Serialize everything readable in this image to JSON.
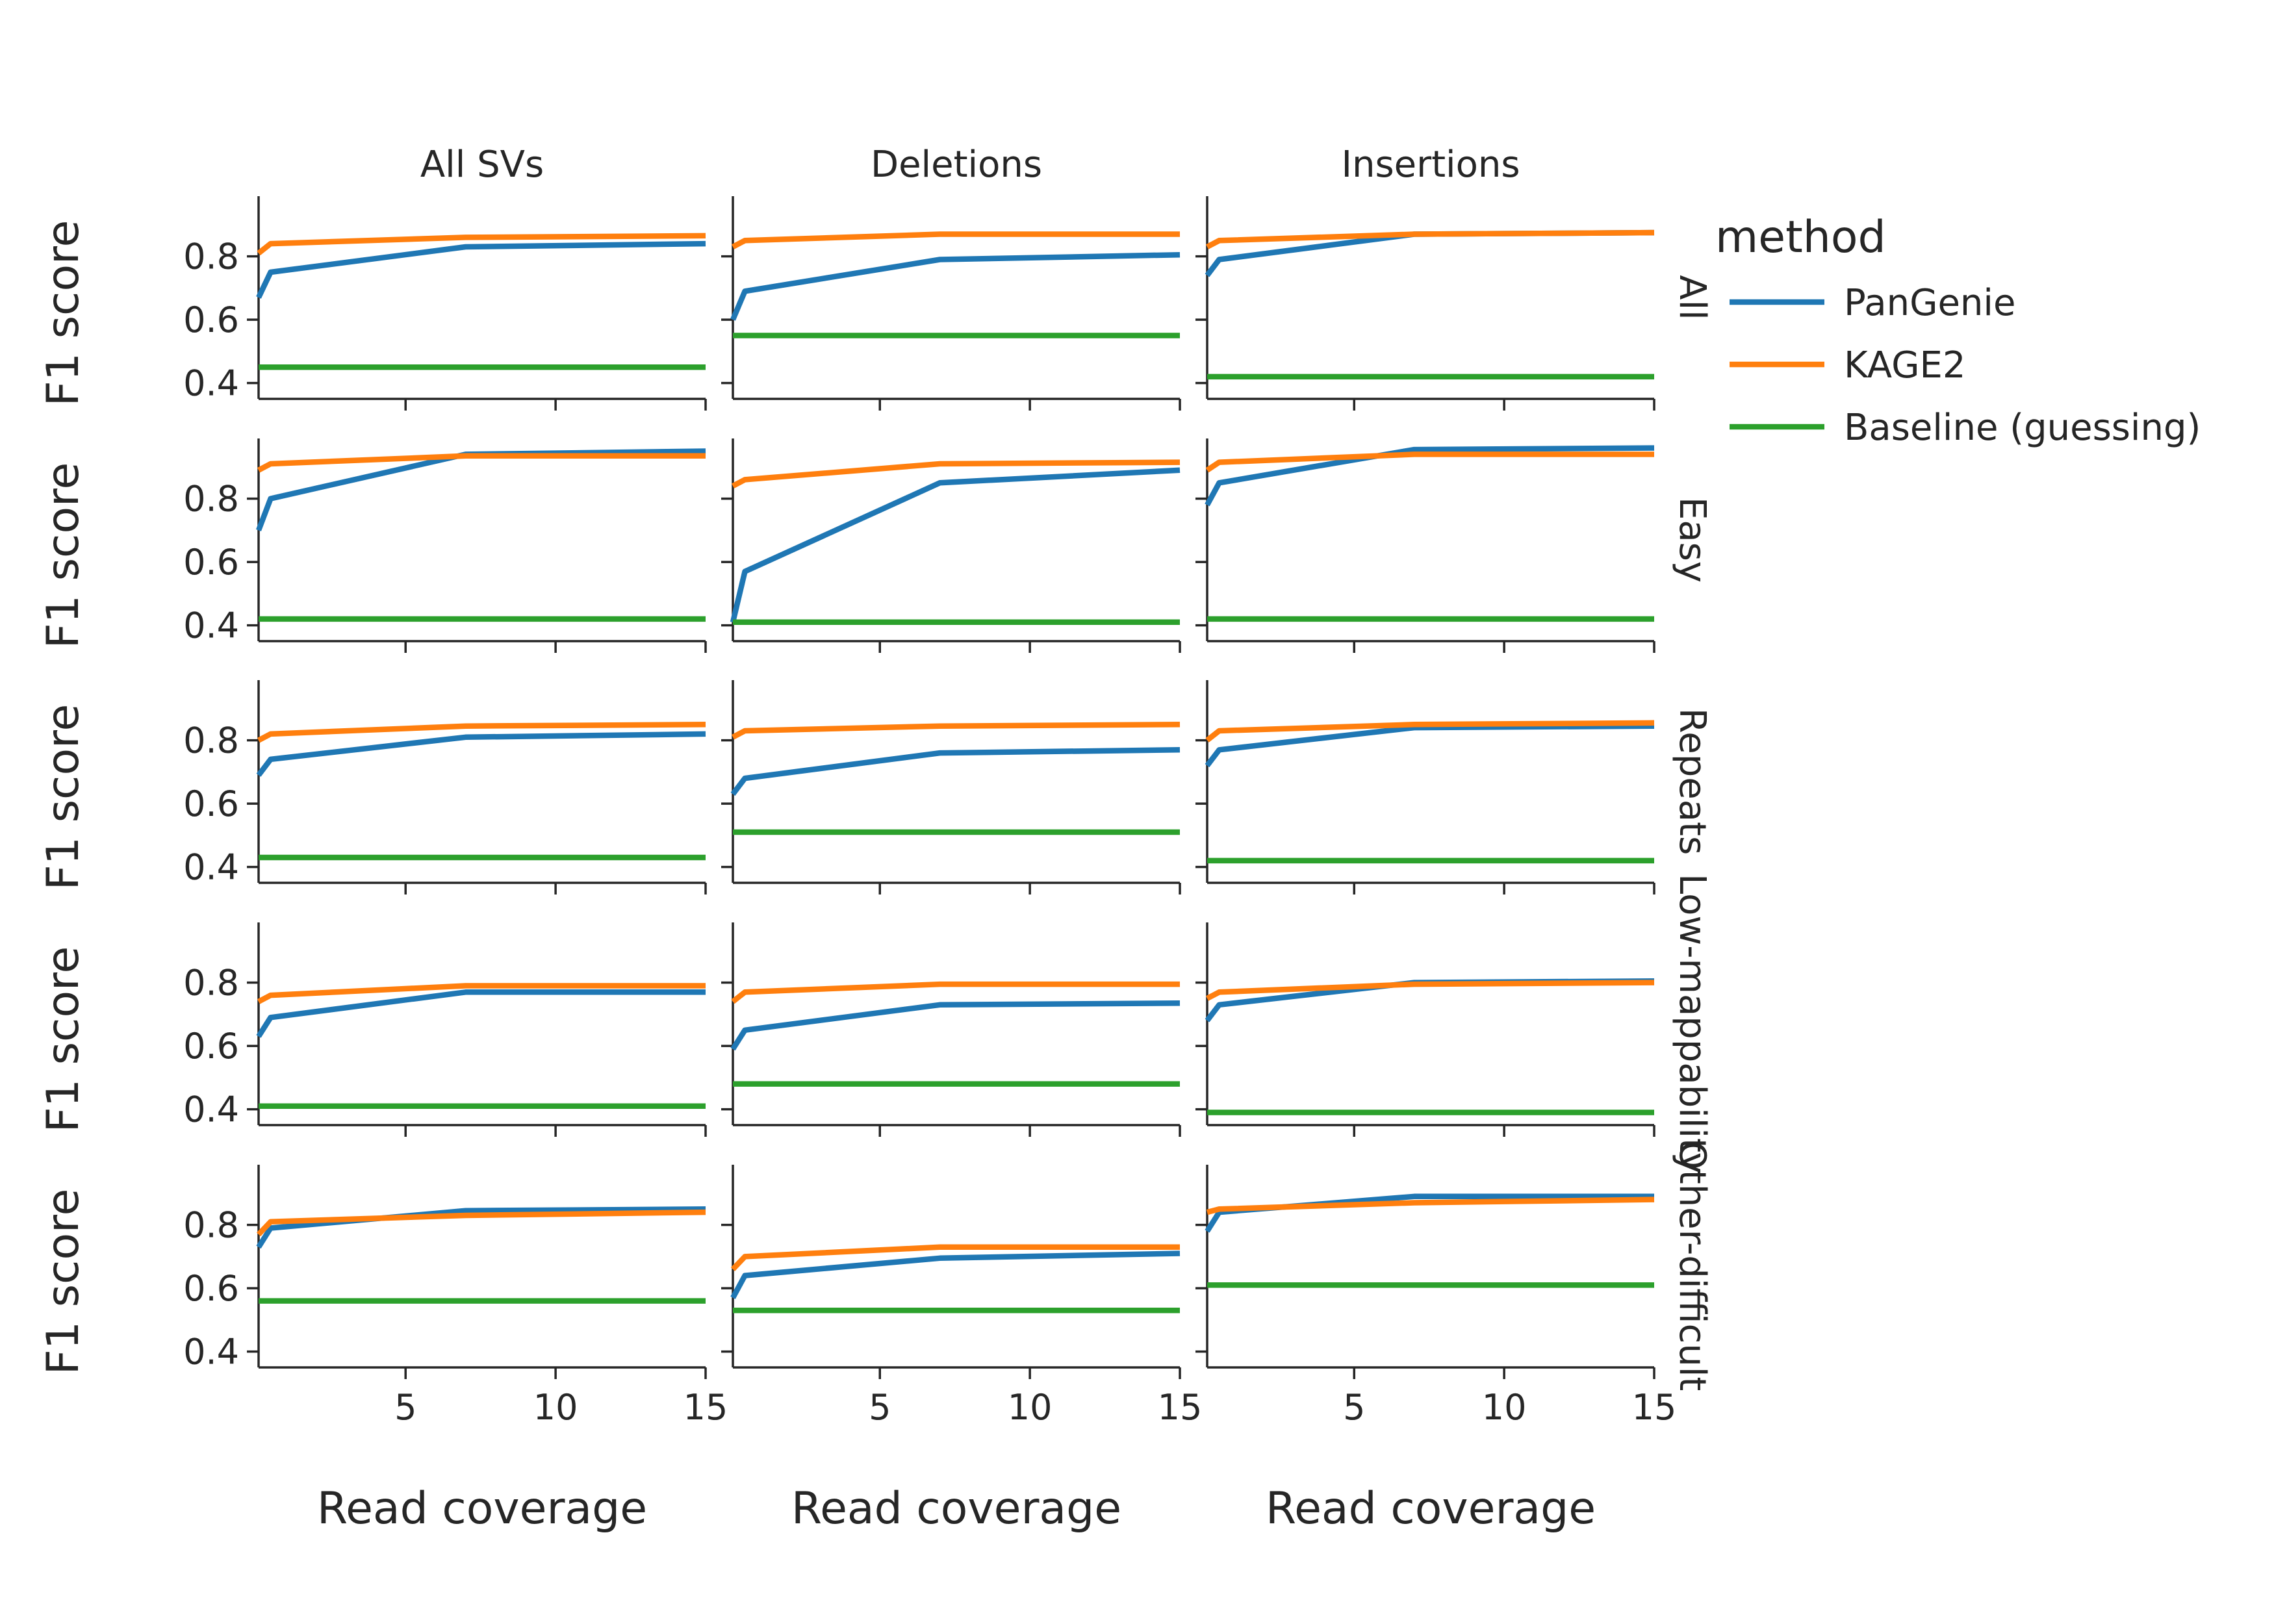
{
  "chart_data": {
    "type": "line",
    "layout": "facet grid (rows x columns)",
    "column_titles": [
      "All SVs",
      "Deletions",
      "Insertions"
    ],
    "row_titles": [
      "All",
      "Easy",
      "Repeats",
      "Low-mappability",
      "Other-difficult"
    ],
    "xlabel": "Read coverage",
    "ylabel": "F1 score",
    "x": [
      0.1,
      0.5,
      7,
      15
    ],
    "xlim": [
      0.1,
      15
    ],
    "ylim": [
      0.35,
      0.99
    ],
    "xticks": [
      5,
      10,
      15
    ],
    "yticks": [
      0.4,
      0.6,
      0.8
    ],
    "legend": {
      "title": "method",
      "position": "right"
    },
    "methods": [
      {
        "name": "PanGenie",
        "color": "#1f77b4"
      },
      {
        "name": "KAGE2",
        "color": "#ff7f0e"
      },
      {
        "name": "Baseline (guessing)",
        "color": "#2ca02c"
      }
    ],
    "panels": [
      [
        {
          "PanGenie": [
            0.67,
            0.75,
            0.83,
            0.84
          ],
          "KAGE2": [
            0.81,
            0.84,
            0.86,
            0.865
          ],
          "Baseline (guessing)": [
            0.45,
            0.45,
            0.45,
            0.45
          ]
        },
        {
          "PanGenie": [
            0.6,
            0.69,
            0.79,
            0.805
          ],
          "KAGE2": [
            0.83,
            0.85,
            0.87,
            0.87
          ],
          "Baseline (guessing)": [
            0.55,
            0.55,
            0.55,
            0.55
          ]
        },
        {
          "PanGenie": [
            0.74,
            0.79,
            0.87,
            0.875
          ],
          "KAGE2": [
            0.83,
            0.85,
            0.87,
            0.875
          ],
          "Baseline (guessing)": [
            0.42,
            0.42,
            0.42,
            0.42
          ]
        }
      ],
      [
        {
          "PanGenie": [
            0.7,
            0.8,
            0.94,
            0.95
          ],
          "KAGE2": [
            0.89,
            0.91,
            0.935,
            0.935
          ],
          "Baseline (guessing)": [
            0.42,
            0.42,
            0.42,
            0.42
          ]
        },
        {
          "PanGenie": [
            0.41,
            0.57,
            0.85,
            0.89
          ],
          "KAGE2": [
            0.84,
            0.86,
            0.91,
            0.915
          ],
          "Baseline (guessing)": [
            0.41,
            0.41,
            0.41,
            0.41
          ]
        },
        {
          "PanGenie": [
            0.78,
            0.85,
            0.955,
            0.96
          ],
          "KAGE2": [
            0.89,
            0.915,
            0.94,
            0.94
          ],
          "Baseline (guessing)": [
            0.42,
            0.42,
            0.42,
            0.42
          ]
        }
      ],
      [
        {
          "PanGenie": [
            0.69,
            0.74,
            0.81,
            0.82
          ],
          "KAGE2": [
            0.8,
            0.82,
            0.845,
            0.85
          ],
          "Baseline (guessing)": [
            0.43,
            0.43,
            0.43,
            0.43
          ]
        },
        {
          "PanGenie": [
            0.63,
            0.68,
            0.76,
            0.77
          ],
          "KAGE2": [
            0.81,
            0.83,
            0.845,
            0.85
          ],
          "Baseline (guessing)": [
            0.51,
            0.51,
            0.51,
            0.51
          ]
        },
        {
          "PanGenie": [
            0.72,
            0.77,
            0.84,
            0.845
          ],
          "KAGE2": [
            0.8,
            0.83,
            0.85,
            0.855
          ],
          "Baseline (guessing)": [
            0.42,
            0.42,
            0.42,
            0.42
          ]
        }
      ],
      [
        {
          "PanGenie": [
            0.63,
            0.69,
            0.77,
            0.77
          ],
          "KAGE2": [
            0.74,
            0.76,
            0.79,
            0.79
          ],
          "Baseline (guessing)": [
            0.41,
            0.41,
            0.41,
            0.41
          ]
        },
        {
          "PanGenie": [
            0.59,
            0.65,
            0.73,
            0.735
          ],
          "KAGE2": [
            0.74,
            0.77,
            0.795,
            0.795
          ],
          "Baseline (guessing)": [
            0.48,
            0.48,
            0.48,
            0.48
          ]
        },
        {
          "PanGenie": [
            0.68,
            0.73,
            0.8,
            0.805
          ],
          "KAGE2": [
            0.75,
            0.77,
            0.795,
            0.8
          ],
          "Baseline (guessing)": [
            0.39,
            0.39,
            0.39,
            0.39
          ]
        }
      ],
      [
        {
          "PanGenie": [
            0.73,
            0.79,
            0.845,
            0.85
          ],
          "KAGE2": [
            0.77,
            0.81,
            0.83,
            0.84
          ],
          "Baseline (guessing)": [
            0.56,
            0.56,
            0.56,
            0.56
          ]
        },
        {
          "PanGenie": [
            0.57,
            0.64,
            0.695,
            0.71
          ],
          "KAGE2": [
            0.66,
            0.7,
            0.73,
            0.73
          ],
          "Baseline (guessing)": [
            0.53,
            0.53,
            0.53,
            0.53
          ]
        },
        {
          "PanGenie": [
            0.78,
            0.84,
            0.89,
            0.89
          ],
          "KAGE2": [
            0.84,
            0.85,
            0.87,
            0.88
          ],
          "Baseline (guessing)": [
            0.61,
            0.61,
            0.61,
            0.61
          ]
        }
      ]
    ]
  }
}
